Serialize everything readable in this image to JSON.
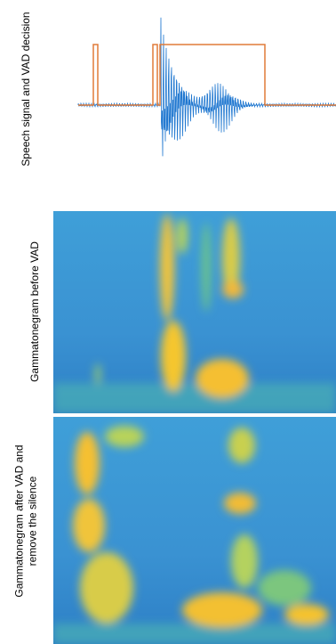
{
  "panels": [
    {
      "label": [
        "Speech signal and VAD decision"
      ]
    },
    {
      "label": [
        "Gammatonegram before VAD"
      ]
    },
    {
      "label": [
        "Gammatonegram after VAD and",
        "remove the silence"
      ]
    }
  ]
}
